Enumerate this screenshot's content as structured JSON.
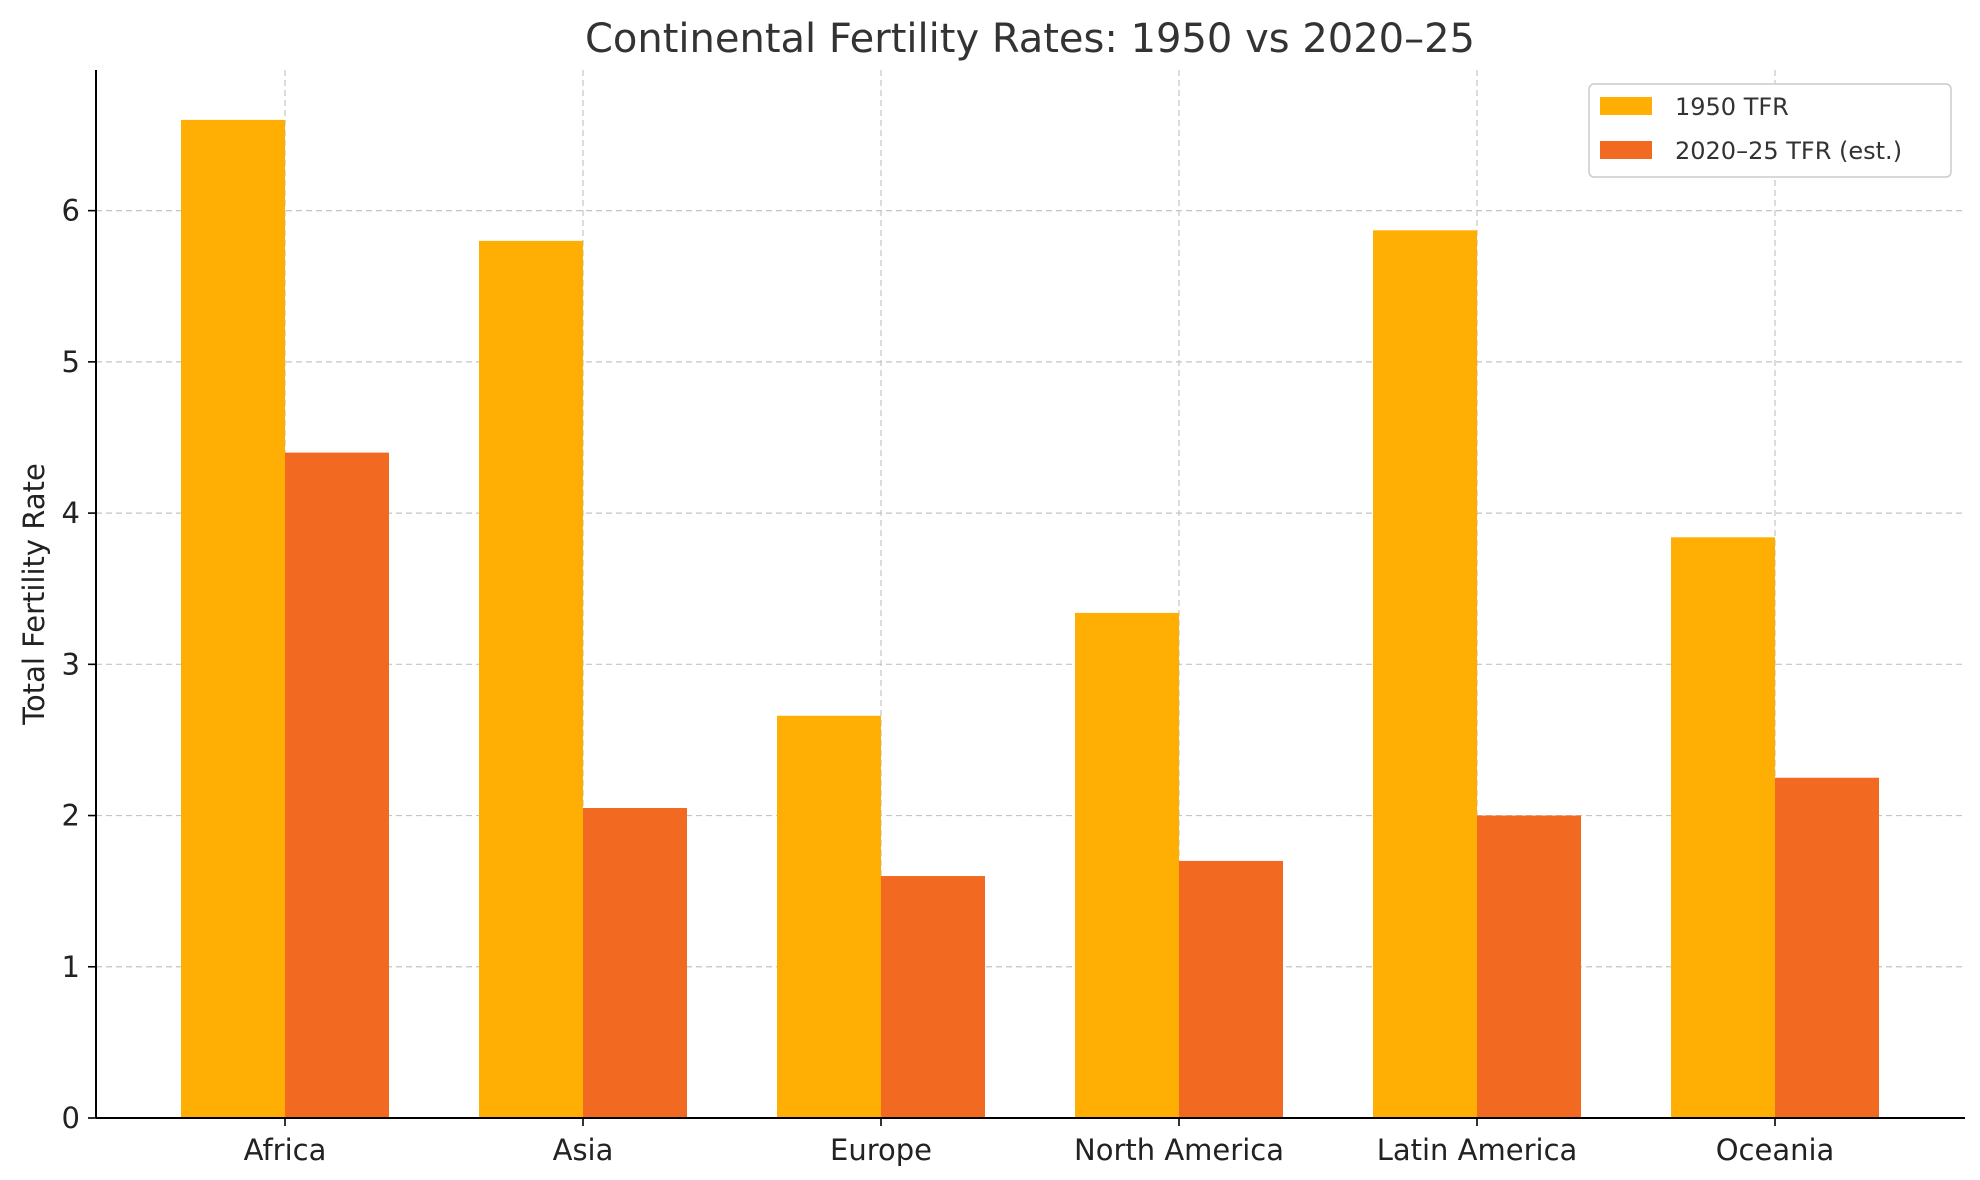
{
  "chart_data": {
    "type": "bar",
    "title": "Continental Fertility Rates: 1950 vs 2020–25",
    "xlabel": "",
    "ylabel": "Total Fertility Rate",
    "categories": [
      "Africa",
      "Asia",
      "Europe",
      "North America",
      "Latin America",
      "Oceania"
    ],
    "series": [
      {
        "name": "1950 TFR",
        "color": "#FFAE03",
        "values": [
          6.6,
          5.8,
          2.66,
          3.34,
          5.87,
          3.84
        ]
      },
      {
        "name": "2020–25 TFR (est.)",
        "color": "#F26A21",
        "values": [
          4.4,
          2.05,
          1.6,
          1.7,
          2.0,
          2.25
        ]
      }
    ],
    "ylim": [
      0,
      6.93
    ],
    "yticks": [
      "0",
      "1",
      "2",
      "3",
      "4",
      "5",
      "6"
    ],
    "grid": true,
    "legend_position": "top-right"
  }
}
